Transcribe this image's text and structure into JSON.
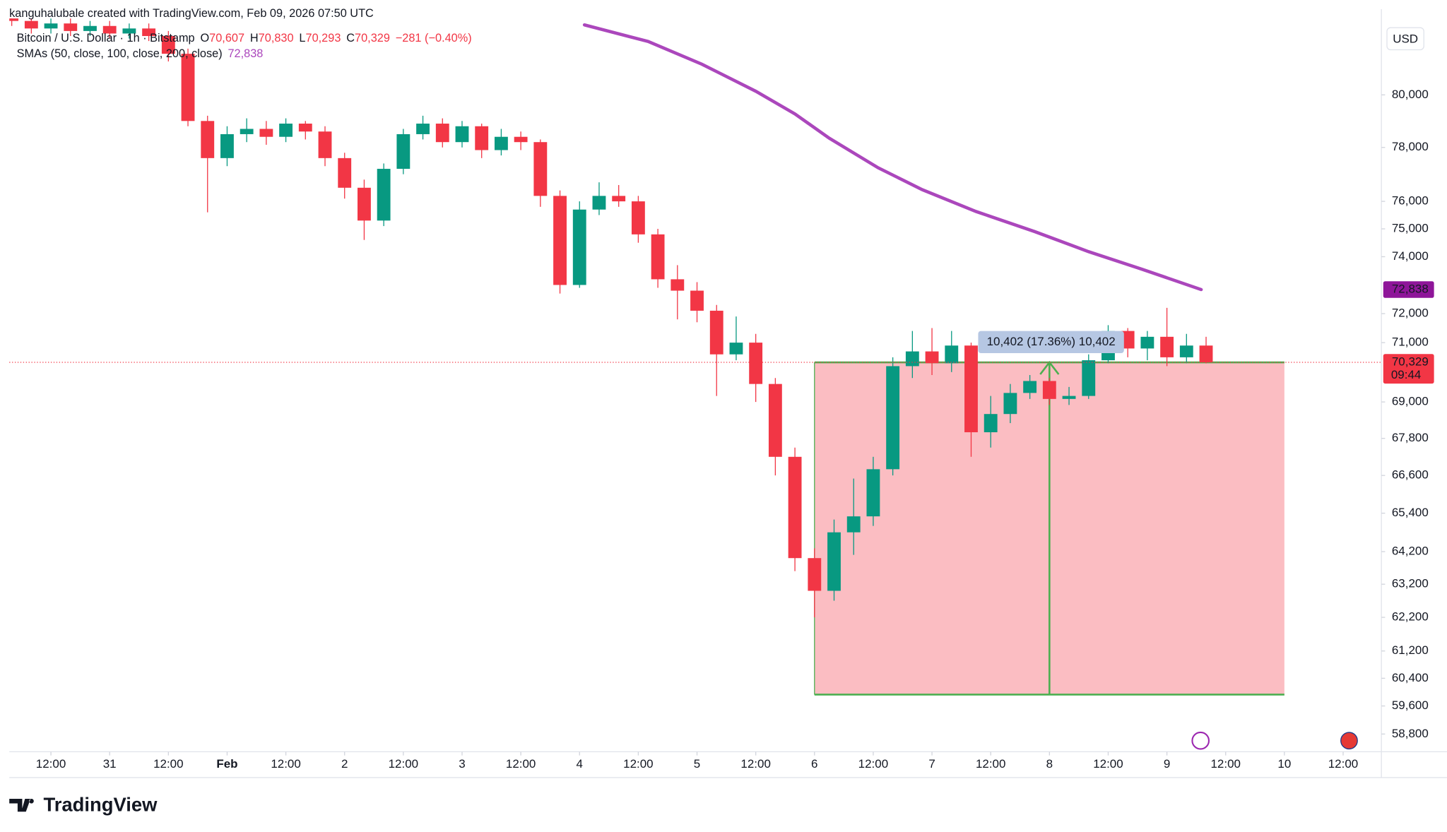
{
  "chart_data": {
    "type": "candlestick",
    "attribution": "kanguhalubale created with TradingView.com, Feb 09, 2026 07:50 UTC",
    "symbol": "Bitcoin / U.S. Dollar · 1h · Bitstamp",
    "ohlc_legend": [
      {
        "key": "O",
        "value": "70,607"
      },
      {
        "key": "H",
        "value": "70,830"
      },
      {
        "key": "L",
        "value": "70,293"
      },
      {
        "key": "C",
        "value": "70,329"
      }
    ],
    "change": "−281 (−0.40%)",
    "currency": "USD",
    "brand": "TradingView",
    "log_scale": true,
    "grid": false,
    "up_color": "#089981",
    "down_color": "#f23645",
    "xlim": [
      -20.5,
      258.5
    ],
    "ylim": [
      58300,
      83000
    ],
    "xticks": [
      {
        "value": -12,
        "label": "12:00"
      },
      {
        "value": 0,
        "label": "31"
      },
      {
        "value": 12,
        "label": "12:00"
      },
      {
        "value": 24,
        "label": "Feb"
      },
      {
        "value": 36,
        "label": "12:00"
      },
      {
        "value": 48,
        "label": "2"
      },
      {
        "value": 60,
        "label": "12:00"
      },
      {
        "value": 72,
        "label": "3"
      },
      {
        "value": 84,
        "label": "12:00"
      },
      {
        "value": 96,
        "label": "4"
      },
      {
        "value": 108,
        "label": "12:00"
      },
      {
        "value": 120,
        "label": "5"
      },
      {
        "value": 132,
        "label": "12:00"
      },
      {
        "value": 144,
        "label": "6"
      },
      {
        "value": 156,
        "label": "12:00"
      },
      {
        "value": 168,
        "label": "7"
      },
      {
        "value": 180,
        "label": "12:00"
      },
      {
        "value": 192,
        "label": "8"
      },
      {
        "value": 204,
        "label": "12:00"
      },
      {
        "value": 216,
        "label": "9"
      },
      {
        "value": 228,
        "label": "12:00"
      },
      {
        "value": 240,
        "label": "10"
      },
      {
        "value": 252,
        "label": "12:00"
      }
    ],
    "yticks": [
      {
        "value": 80000,
        "label": "80,000"
      },
      {
        "value": 78000,
        "label": "78,000"
      },
      {
        "value": 76000,
        "label": "76,000"
      },
      {
        "value": 75000,
        "label": "75,000"
      },
      {
        "value": 74000,
        "label": "74,000"
      },
      {
        "value": 72000,
        "label": "72,000"
      },
      {
        "value": 71000,
        "label": "71,000"
      },
      {
        "value": 69000,
        "label": "69,000"
      },
      {
        "value": 67800,
        "label": "67,800"
      },
      {
        "value": 66600,
        "label": "66,600"
      },
      {
        "value": 65400,
        "label": "65,400"
      },
      {
        "value": 64200,
        "label": "64,200"
      },
      {
        "value": 63200,
        "label": "63,200"
      },
      {
        "value": 62200,
        "label": "62,200"
      },
      {
        "value": 61200,
        "label": "61,200"
      },
      {
        "value": 60400,
        "label": "60,400"
      },
      {
        "value": 59600,
        "label": "59,600"
      },
      {
        "value": 58800,
        "label": "58,800"
      }
    ],
    "candles": {
      "x": [
        -20,
        -16,
        -12,
        -8,
        -4,
        0,
        4,
        8,
        12,
        16,
        20,
        24,
        28,
        32,
        36,
        40,
        44,
        48,
        52,
        56,
        60,
        64,
        68,
        72,
        76,
        80,
        84,
        88,
        92,
        96,
        100,
        104,
        108,
        112,
        116,
        120,
        124,
        128,
        132,
        136,
        140,
        144,
        148,
        152,
        156,
        160,
        164,
        168,
        172,
        176,
        180,
        184,
        188,
        192,
        196,
        200,
        204,
        208,
        212,
        216,
        220,
        224
      ],
      "open": [
        83100,
        82900,
        82600,
        82800,
        82500,
        82700,
        82400,
        82600,
        82300,
        81600,
        79000,
        77600,
        78500,
        78700,
        78400,
        78900,
        78600,
        77600,
        76500,
        75300,
        77200,
        78500,
        78900,
        78200,
        78800,
        77900,
        78400,
        78200,
        76200,
        73000,
        75700,
        76200,
        76000,
        74800,
        73200,
        72800,
        72100,
        70600,
        71000,
        69600,
        67200,
        64000,
        63000,
        64800,
        65300,
        66800,
        70200,
        70700,
        70300,
        70900,
        68000,
        68600,
        69300,
        69700,
        69100,
        69200,
        70400,
        71400,
        70800,
        71200,
        70500,
        70900
      ],
      "high": [
        83300,
        83100,
        83000,
        83000,
        82900,
        82900,
        82800,
        82800,
        82500,
        81800,
        79200,
        78800,
        79100,
        79000,
        79100,
        79000,
        78800,
        77800,
        76800,
        77400,
        78700,
        79200,
        79100,
        79000,
        78900,
        78700,
        78600,
        78300,
        76400,
        76000,
        76700,
        76600,
        76200,
        75000,
        73700,
        73100,
        72300,
        71900,
        71300,
        69800,
        67500,
        64300,
        65200,
        66500,
        67200,
        70500,
        71400,
        71500,
        71400,
        71000,
        69200,
        69600,
        69900,
        69800,
        69500,
        70600,
        71600,
        71500,
        71400,
        72200,
        71300,
        71200
      ],
      "low": [
        82700,
        82400,
        82400,
        82300,
        82300,
        82200,
        82200,
        82100,
        81300,
        78800,
        75600,
        77300,
        78200,
        78100,
        78200,
        78300,
        77300,
        76100,
        74600,
        75100,
        77000,
        78300,
        78000,
        78000,
        77600,
        77700,
        77900,
        75800,
        72700,
        72900,
        75500,
        75800,
        74500,
        72900,
        71800,
        71700,
        69200,
        70400,
        69000,
        66600,
        63600,
        62200,
        62700,
        64100,
        65000,
        66600,
        69800,
        69900,
        70000,
        67200,
        67500,
        68300,
        69100,
        68900,
        68900,
        69100,
        70300,
        70500,
        70400,
        70200,
        70300,
        70293
      ],
      "close": [
        82900,
        82600,
        82800,
        82500,
        82700,
        82400,
        82600,
        82300,
        81600,
        79000,
        77600,
        78500,
        78700,
        78400,
        78900,
        78600,
        77600,
        76500,
        75300,
        77200,
        78500,
        78900,
        78200,
        78800,
        77900,
        78400,
        78200,
        76200,
        73000,
        75700,
        76200,
        76000,
        74800,
        73200,
        72800,
        72100,
        70600,
        71000,
        69600,
        67200,
        64000,
        63000,
        64800,
        65300,
        66800,
        70200,
        70700,
        70300,
        70900,
        68000,
        68600,
        69300,
        69700,
        69100,
        69200,
        70400,
        71400,
        70800,
        71200,
        70500,
        70900,
        70329
      ]
    },
    "sma": {
      "name": "SMAs (50, close, 100, close, 200, close)",
      "color": "#ab47bc",
      "x": [
        97,
        110,
        121,
        132,
        140,
        147,
        157,
        166,
        177,
        189,
        200,
        211,
        223
      ],
      "values": [
        82743,
        82085,
        81190,
        80140,
        79270,
        78350,
        77240,
        76430,
        75630,
        74900,
        74180,
        73550,
        72838
      ],
      "value_labels": [
        "72,838"
      ]
    },
    "price_line": {
      "value": 70329,
      "label": "70,329",
      "countdown": "09:44",
      "color": "#f23645"
    },
    "measure": {
      "label": "10,402 (17.36%) 10,402",
      "x": [
        144,
        240
      ],
      "arrow_x": 192,
      "y": [
        59927,
        70329
      ]
    }
  }
}
